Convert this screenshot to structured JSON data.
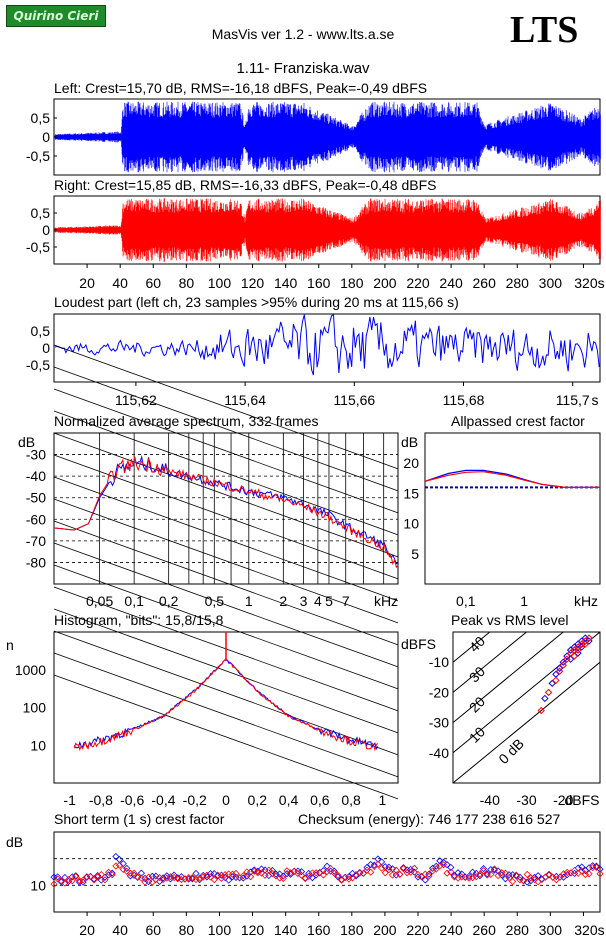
{
  "header": {
    "logo_text": "Quirino Cieri",
    "app_title": "MasVis ver 1.2 - www.lts.a.se",
    "brand": "LTS",
    "file_name": "1.11- Franziska.wav"
  },
  "colors": {
    "left": "#0000ff",
    "right": "#ff0000"
  },
  "waveform_left": {
    "title": "Left: Crest=15,70 dB, RMS=-16,18 dBFS, Peak=-0,49 dBFS",
    "y_ticks": [
      "0,5",
      "0",
      "-0,5"
    ]
  },
  "waveform_right": {
    "title": "Right: Crest=15,85 dB, RMS=-16,33 dBFS, Peak=-0,48 dBFS",
    "y_ticks": [
      "0,5",
      "0",
      "-0,5"
    ],
    "x_ticks": [
      "20",
      "40",
      "60",
      "80",
      "100",
      "120",
      "140",
      "160",
      "180",
      "200",
      "220",
      "240",
      "260",
      "280",
      "300",
      "320s"
    ]
  },
  "loudest": {
    "title": "Loudest part (left  ch, 23 samples >95% during 20 ms at 115,66 s)",
    "y_ticks": [
      "0,5",
      "0",
      "-0,5"
    ],
    "x_ticks": [
      "115,62",
      "115,64",
      "115,66",
      "115,68",
      "115,7",
      "s"
    ]
  },
  "spectrum": {
    "title": "Normalized average spectrum, 332 frames",
    "ylabel": "dB",
    "y_ticks": [
      "-30",
      "-40",
      "-50",
      "-60",
      "-70",
      "-80"
    ],
    "x_ticks": [
      "0,05",
      "0,1",
      "0,2",
      "0,5",
      "1",
      "2",
      "3",
      "4",
      "5",
      "7",
      "kHz"
    ]
  },
  "crest_allpass": {
    "title": "Allpassed crest factor",
    "ylabel": "dB",
    "y_ticks": [
      "20",
      "15",
      "10",
      "5"
    ],
    "x_ticks": [
      "0,1",
      "1",
      "kHz"
    ]
  },
  "histogram": {
    "title": "Histogram, \"bits\": 15,8/15,8",
    "ylabel": "n",
    "y_ticks": [
      "1000",
      "100",
      "10"
    ],
    "x_ticks": [
      "-1",
      "-0,8",
      "-0,6",
      "-0,4",
      "-0,2",
      "0",
      "0,2",
      "0,4",
      "0,6",
      "0,8",
      "1"
    ]
  },
  "peak_rms": {
    "title": "Peak vs RMS level",
    "ylabel": "dBFS",
    "y_ticks": [
      "-10",
      "-20",
      "-30",
      "-40"
    ],
    "x_ticks": [
      "-40",
      "-30",
      "-20",
      "dBFS"
    ],
    "diag_labels": [
      "40",
      "30",
      "20",
      "10",
      "0 dB"
    ]
  },
  "short_crest": {
    "title": "Short term (1 s) crest factor",
    "checksum": "Checksum (energy):   746 177 238 616 527",
    "ylabel": "dB",
    "y_ticks": [
      "10"
    ],
    "x_ticks": [
      "20",
      "40",
      "60",
      "80",
      "100",
      "120",
      "140",
      "160",
      "180",
      "200",
      "220",
      "240",
      "260",
      "280",
      "300",
      "320s"
    ]
  },
  "chart_data": [
    {
      "type": "line",
      "title": "Left: Crest=15,70 dB, RMS=-16,18 dBFS, Peak=-0,49 dBFS",
      "xlim": [
        0,
        330
      ],
      "ylim": [
        -1,
        1
      ],
      "envelope": {
        "x": [
          0,
          40,
          41,
          112,
          115,
          117,
          150,
          180,
          190,
          255,
          260,
          300,
          318,
          330
        ],
        "amp": [
          0.08,
          0.15,
          0.95,
          0.95,
          0.3,
          0.95,
          0.95,
          0.3,
          0.95,
          0.95,
          0.35,
          0.95,
          0.5,
          0.95
        ]
      }
    },
    {
      "type": "line",
      "title": "Right: Crest=15,85 dB, RMS=-16,33 dBFS, Peak=-0,48 dBFS",
      "xlim": [
        0,
        330
      ],
      "ylim": [
        -1,
        1
      ],
      "envelope": {
        "x": [
          0,
          40,
          41,
          112,
          115,
          117,
          150,
          180,
          190,
          255,
          260,
          300,
          318,
          330
        ],
        "amp": [
          0.08,
          0.15,
          0.95,
          0.95,
          0.35,
          0.95,
          0.95,
          0.35,
          0.95,
          0.95,
          0.35,
          0.95,
          0.5,
          0.95
        ]
      }
    },
    {
      "type": "line",
      "title": "Loudest part (left  ch, 23 samples >95% during 20 ms at 115,66 s)",
      "xlim": [
        115.605,
        115.705
      ],
      "ylim": [
        -1,
        1
      ],
      "envelope": {
        "x": [
          115.605,
          115.63,
          115.64,
          115.66,
          115.68,
          115.705
        ],
        "amp": [
          0.15,
          0.25,
          0.7,
          0.95,
          0.6,
          0.7
        ]
      }
    },
    {
      "type": "line",
      "title": "Normalized average spectrum, 332 frames",
      "xlim": [
        0.02,
        20
      ],
      "ylim": [
        -90,
        -20
      ],
      "series": [
        {
          "color": "#0000ff",
          "x": [
            0.02,
            0.03,
            0.04,
            0.05,
            0.07,
            0.1,
            0.15,
            0.2,
            0.3,
            0.5,
            0.7,
            1,
            2,
            3,
            5,
            7,
            10,
            15,
            20
          ],
          "y": [
            -64,
            -65,
            -62,
            -50,
            -38,
            -34,
            -35,
            -38,
            -40,
            -43,
            -45,
            -47,
            -50,
            -53,
            -58,
            -63,
            -67,
            -72,
            -82
          ]
        },
        {
          "color": "#ff0000",
          "x": [
            0.02,
            0.03,
            0.04,
            0.05,
            0.07,
            0.1,
            0.15,
            0.2,
            0.3,
            0.5,
            0.7,
            1,
            2,
            3,
            5,
            7,
            10,
            15,
            20
          ],
          "y": [
            -64,
            -65,
            -62,
            -49,
            -37,
            -34,
            -35,
            -38,
            -40,
            -43,
            -45,
            -47,
            -51,
            -54,
            -59,
            -64,
            -68,
            -73,
            -83
          ]
        }
      ]
    },
    {
      "type": "line",
      "title": "Allpassed crest factor",
      "xlim": [
        0.02,
        20
      ],
      "ylim": [
        0,
        25
      ],
      "series": [
        {
          "color": "#0000ff",
          "x": [
            0.02,
            0.05,
            0.1,
            0.2,
            0.5,
            1,
            2,
            5,
            10,
            20
          ],
          "y": [
            17,
            18.3,
            18.8,
            18.8,
            18.2,
            17.3,
            16.5,
            16,
            16,
            16
          ]
        },
        {
          "color": "#ff0000",
          "x": [
            0.02,
            0.05,
            0.1,
            0.2,
            0.5,
            1,
            2,
            5,
            10,
            20
          ],
          "y": [
            17,
            18,
            18.5,
            18.6,
            18,
            17.2,
            16.5,
            16,
            16,
            16
          ]
        }
      ],
      "reference_line": 16
    },
    {
      "type": "line",
      "title": "Histogram, \"bits\": 15,8/15,8",
      "xlim": [
        -1.1,
        1.1
      ],
      "ylim": [
        1,
        10000
      ],
      "yscale": "log",
      "series": [
        {
          "color": "#0000ff",
          "x": [
            -0.95,
            -0.8,
            -0.6,
            -0.4,
            -0.2,
            0,
            0.2,
            0.4,
            0.6,
            0.8,
            0.95
          ],
          "y": [
            10,
            14,
            26,
            60,
            280,
            1900,
            280,
            60,
            26,
            14,
            10
          ]
        },
        {
          "color": "#ff0000",
          "x": [
            -0.95,
            -0.8,
            -0.6,
            -0.4,
            -0.2,
            0,
            0.2,
            0.4,
            0.6,
            0.8,
            0.95
          ],
          "y": [
            9,
            13,
            25,
            58,
            270,
            1950,
            270,
            58,
            25,
            13,
            9
          ]
        }
      ]
    },
    {
      "type": "scatter",
      "title": "Peak vs RMS level",
      "xlim": [
        -50,
        -10
      ],
      "ylim": [
        -50,
        0
      ],
      "series": [
        {
          "color": "#0000ff",
          "x": [
            -21,
            -20,
            -19,
            -18,
            -17,
            -16,
            -15,
            -14,
            -22,
            -23,
            -25,
            -18,
            -16,
            -15,
            -13
          ],
          "y": [
            -12,
            -10,
            -8,
            -6,
            -5,
            -4,
            -3,
            -2,
            -14,
            -17,
            -22,
            -9,
            -7,
            -5,
            -3
          ]
        },
        {
          "color": "#ff0000",
          "x": [
            -20,
            -19,
            -18,
            -17,
            -16,
            -15,
            -14,
            -13,
            -21,
            -22,
            -24,
            -26,
            -17,
            -16,
            -14
          ],
          "y": [
            -11,
            -9,
            -7,
            -6,
            -5,
            -4,
            -3,
            -2,
            -13,
            -16,
            -20,
            -26,
            -8,
            -6,
            -4
          ]
        }
      ]
    },
    {
      "type": "scatter",
      "title": "Short term (1 s) crest factor",
      "xlim": [
        0,
        330
      ],
      "ylim": [
        5,
        20
      ],
      "series": [
        {
          "color": "#0000ff",
          "x": [
            5,
            15,
            25,
            35,
            38,
            45,
            55,
            65,
            75,
            85,
            95,
            105,
            115,
            125,
            135,
            145,
            155,
            165,
            175,
            185,
            195,
            205,
            215,
            225,
            235,
            245,
            255,
            265,
            275,
            285,
            295,
            305,
            315,
            325
          ],
          "y": [
            11,
            11.3,
            11,
            12.4,
            15.5,
            12,
            11.5,
            11,
            11.3,
            11.5,
            12,
            11.6,
            12,
            13,
            12,
            12.5,
            11.5,
            13,
            11.5,
            12,
            14.5,
            12.5,
            13,
            11.5,
            14.5,
            11.6,
            12,
            13,
            11.5,
            11.2,
            11.5,
            12,
            12.6,
            13
          ]
        },
        {
          "color": "#ff0000",
          "x": [
            5,
            15,
            25,
            35,
            38,
            45,
            55,
            65,
            75,
            85,
            95,
            105,
            115,
            125,
            135,
            145,
            155,
            165,
            175,
            185,
            195,
            205,
            215,
            225,
            235,
            245,
            255,
            265,
            275,
            285,
            295,
            305,
            315,
            325
          ],
          "y": [
            10.8,
            11,
            11.2,
            12,
            14.5,
            11.8,
            11.3,
            11.2,
            11,
            11.4,
            11.8,
            11.4,
            11.8,
            12.5,
            11.8,
            12.3,
            11.7,
            12.8,
            11.3,
            11.8,
            13.5,
            12.2,
            12.8,
            11.8,
            13.5,
            11.4,
            12.2,
            12.6,
            11.3,
            11.4,
            11.2,
            11.8,
            12.2,
            12.8
          ]
        }
      ],
      "reference_lines": [
        10,
        15
      ]
    }
  ]
}
